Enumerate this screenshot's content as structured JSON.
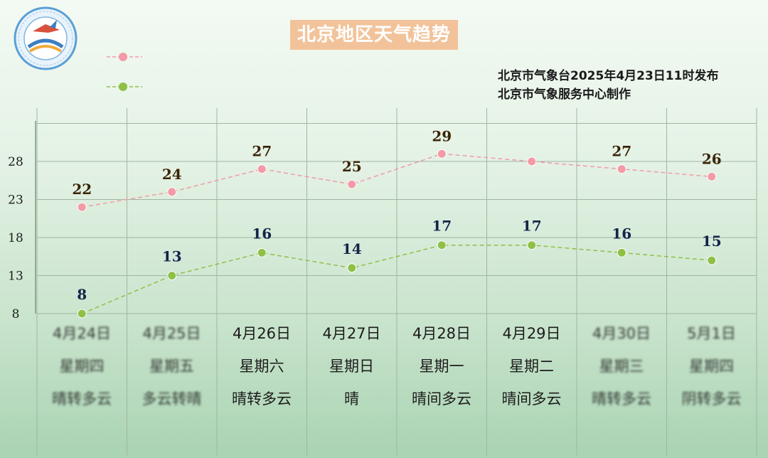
{
  "header": {
    "title": "北京地区天气趋势",
    "issuer_line_1": "北京市气象台2025年4月23日11时发布",
    "issuer_line_2": "北京市气象服务中心制作"
  },
  "colors": {
    "high_series": "#f39aa6",
    "low_series": "#8fc046",
    "grid": "#9fb6a2",
    "title_box": "#f2c39a"
  },
  "chart_data": {
    "type": "line",
    "categories": [
      "4月24日",
      "4月25日",
      "4月26日",
      "4月27日",
      "4月28日",
      "4月29日",
      "4月30日",
      "5月1日"
    ],
    "weekdays": [
      "星期四",
      "星期五",
      "星期六",
      "星期日",
      "星期一",
      "星期二",
      "星期三",
      "星期四"
    ],
    "conditions": [
      "晴转多云",
      "多云转晴",
      "晴转多云",
      "晴",
      "晴间多云",
      "晴间多云",
      "晴转多云",
      "阴转多云"
    ],
    "blurred_columns": [
      0,
      1,
      6,
      7
    ],
    "y_ticks": [
      8,
      13,
      18,
      23,
      28
    ],
    "ylim": [
      8,
      33
    ],
    "grid": true,
    "legend_placement": "top-left",
    "series": [
      {
        "values": [
          22,
          24,
          27,
          25,
          29,
          28,
          27,
          26
        ],
        "labels": [
          "22",
          "24",
          "27",
          "25",
          "29",
          "",
          "27",
          "26"
        ],
        "color": "#f39aa6"
      },
      {
        "values": [
          8,
          13,
          16,
          14,
          17,
          17,
          16,
          15
        ],
        "labels": [
          "8",
          "13",
          "16",
          "14",
          "17",
          "17",
          "16",
          "15"
        ],
        "color": "#8fc046"
      }
    ]
  }
}
